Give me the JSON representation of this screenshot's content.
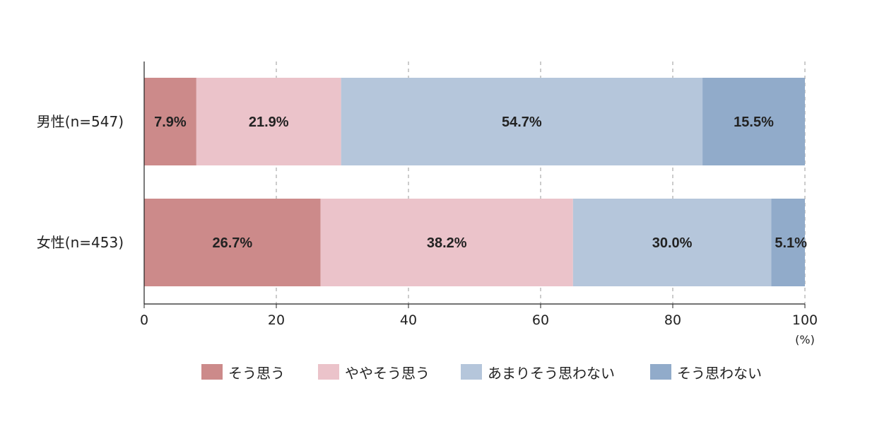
{
  "chart_data": {
    "type": "bar",
    "orientation": "horizontal",
    "stacked": true,
    "categories": [
      "男性(n=547)",
      "女性(n=453)"
    ],
    "series": [
      {
        "name": "そう思う",
        "color": "#cc8a8a",
        "values": [
          7.9,
          26.7
        ],
        "labels": [
          "7.9%",
          "26.7%"
        ]
      },
      {
        "name": "ややそう思う",
        "color": "#ebc3ca",
        "values": [
          21.9,
          38.2
        ],
        "labels": [
          "21.9%",
          "38.2%"
        ]
      },
      {
        "name": "あまりそう思わない",
        "color": "#b5c6db",
        "values": [
          54.7,
          30.0
        ],
        "labels": [
          "54.7%",
          "30.0%"
        ]
      },
      {
        "name": "そう思わない",
        "color": "#91abca",
        "values": [
          15.5,
          5.1
        ],
        "labels": [
          "15.5%",
          "5.1%"
        ]
      }
    ],
    "xlim": [
      0,
      100
    ],
    "xticks": [
      "0",
      "20",
      "40",
      "60",
      "80",
      "100"
    ],
    "xunit": "(%)",
    "grid": "vertical dashed",
    "legend": "bottom"
  }
}
